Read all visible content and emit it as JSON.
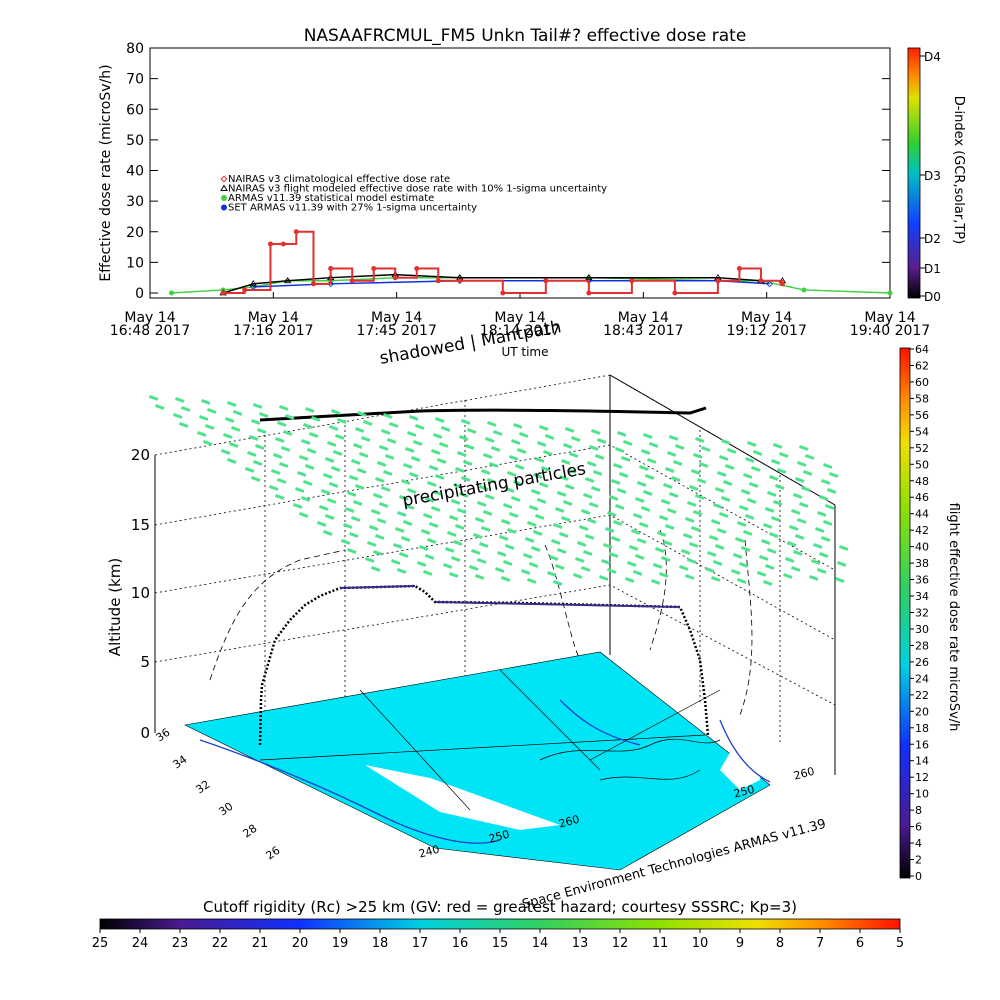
{
  "title": "NASAAFRCMUL_FM5 Unkn Tail#? effective dose rate",
  "top_chart": {
    "ylabel": "Effective dose rate (microSv/h)",
    "xlabel": "UT time",
    "y_ticks": [
      "0",
      "10",
      "20",
      "30",
      "40",
      "50",
      "60",
      "70",
      "80"
    ],
    "x_ticks": [
      {
        "l1": "May 14",
        "l2": "16:48 2017"
      },
      {
        "l1": "May 14",
        "l2": "17:16 2017"
      },
      {
        "l1": "May 14",
        "l2": "17:45 2017"
      },
      {
        "l1": "May 14",
        "l2": "18:14 2017"
      },
      {
        "l1": "May 14",
        "l2": "18:43 2017"
      },
      {
        "l1": "May 14",
        "l2": "19:12 2017"
      },
      {
        "l1": "May 14",
        "l2": "19:40 2017"
      }
    ],
    "legend": [
      {
        "label": "NAIRAS v3 climatological effective dose rate",
        "color": "#e03030",
        "marker": "diamond"
      },
      {
        "label": "NAIRAS v3 flight modeled effective dose rate with 10% 1-sigma uncertainty",
        "color": "#000000",
        "marker": "triangle"
      },
      {
        "label": "ARMAS v11.39 statistical model estimate",
        "color": "#40d040",
        "marker": "star"
      },
      {
        "label": "SET ARMAS v11.39 with 27% 1-sigma uncertainty",
        "color": "#1030e0",
        "marker": "dot"
      }
    ],
    "overlay_text": "shadowed | Mantpath",
    "dindex": {
      "title": "D-index (GCR,solar,TP)",
      "labels": [
        "D0",
        "D1",
        "D2",
        "D3",
        "D4"
      ]
    }
  },
  "bottom_chart": {
    "zlabel": "Altitude (km)",
    "z_ticks": [
      "0",
      "5",
      "10",
      "15",
      "20"
    ],
    "annotation": "precipitating particles",
    "lat_ticks": [
      "36",
      "34",
      "32",
      "30",
      "28",
      "26"
    ],
    "lon_ticks_front": [
      "240",
      "250",
      "260"
    ],
    "lon_ticks_side": [
      "250",
      "260"
    ],
    "credit": "Space Environment Technologies ARMAS v11.39",
    "right_scale": {
      "title": "flight effective dose rate microSv/h",
      "labels": [
        "0",
        "2",
        "4",
        "6",
        "8",
        "10",
        "12",
        "14",
        "16",
        "18",
        "20",
        "22",
        "24",
        "26",
        "28",
        "30",
        "32",
        "34",
        "36",
        "38",
        "40",
        "42",
        "44",
        "46",
        "48",
        "50",
        "52",
        "54",
        "56",
        "58",
        "60",
        "62",
        "64"
      ]
    },
    "bottom_scale": {
      "title": "Cutoff rigidity (Rc) >25 km (GV: red = greatest hazard; courtesy SSSRC; Kp=3)",
      "labels": [
        "25",
        "24",
        "23",
        "22",
        "21",
        "20",
        "19",
        "18",
        "17",
        "16",
        "15",
        "14",
        "13",
        "12",
        "11",
        "10",
        "9",
        "8",
        "7",
        "6",
        "5"
      ]
    }
  },
  "chart_data": [
    {
      "type": "line",
      "title": "NASAAFRCMUL_FM5 Unkn Tail#? effective dose rate",
      "xlabel": "UT time",
      "ylabel": "Effective dose rate (microSv/h)",
      "x_range": [
        "16:48",
        "19:40"
      ],
      "ylim": [
        0,
        80
      ],
      "series": [
        {
          "name": "SET ARMAS v11.39 with 27% 1-sigma uncertainty",
          "x": [
            "17:05",
            "17:10",
            "17:16",
            "17:19",
            "17:22",
            "17:26",
            "17:30",
            "17:35",
            "17:40",
            "17:45",
            "17:50",
            "17:55",
            "18:00",
            "18:10",
            "18:20",
            "18:30",
            "18:40",
            "18:50",
            "19:00",
            "19:05",
            "19:10",
            "19:15"
          ],
          "values": [
            0,
            1,
            16,
            16,
            20,
            3,
            8,
            4,
            8,
            5,
            8,
            4,
            4,
            0,
            4,
            0,
            4,
            0,
            4,
            8,
            4,
            3
          ]
        },
        {
          "name": "ARMAS v11.39 statistical model estimate",
          "x": [
            "17:05",
            "17:12",
            "17:20",
            "17:30",
            "17:45",
            "18:00",
            "18:30",
            "19:00",
            "19:10",
            "19:15"
          ],
          "values": [
            0,
            3,
            4,
            5,
            6,
            5,
            5,
            5,
            4,
            4
          ]
        },
        {
          "name": "NAIRAS v3 flight modeled effective dose rate with 10% 1-sigma uncertainty",
          "x": [
            "16:53",
            "17:05",
            "17:12",
            "17:20",
            "17:30",
            "17:45",
            "18:00",
            "18:30",
            "19:00",
            "19:10",
            "19:20",
            "19:40"
          ],
          "values": [
            0,
            1,
            2,
            4,
            4,
            5,
            5,
            5,
            4,
            4,
            1,
            0
          ]
        },
        {
          "name": "NAIRAS v3 climatological effective dose rate",
          "x": [
            "17:12",
            "17:30",
            "18:00",
            "18:30",
            "19:00",
            "19:12"
          ],
          "values": [
            2,
            3,
            4,
            4,
            4,
            3
          ]
        }
      ]
    },
    {
      "type": "scatter",
      "title": "",
      "zlabel": "Altitude (km)",
      "zlim": [
        0,
        20
      ],
      "series": [
        {
          "name": "",
          "x": [
            0,
            5,
            10,
            20,
            30,
            40,
            45,
            55,
            70,
            80,
            88,
            92,
            95
          ],
          "values": [
            0,
            5,
            10,
            10.5,
            10.5,
            10.5,
            9.5,
            9.4,
            9.2,
            9.0,
            8.9,
            5,
            0
          ]
        }
      ]
    }
  ]
}
